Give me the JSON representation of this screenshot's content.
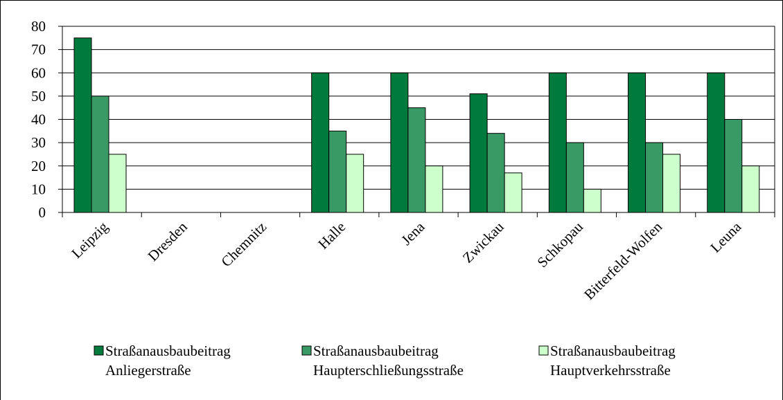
{
  "chart_data": {
    "type": "bar",
    "categories": [
      "Leipzig",
      "Dresden",
      "Chemnitz",
      "Halle",
      "Jena",
      "Zwickau",
      "Schkopau",
      "Bitterfeld-Wolfen",
      "Leuna"
    ],
    "series": [
      {
        "name": "Straßanausbaubeitrag Anliegerstraße",
        "name_lines": [
          "Straßanausbaubeitrag",
          "Anliegerstraße"
        ],
        "color": "#007a3d",
        "values": [
          75,
          null,
          null,
          60,
          60,
          51,
          60,
          60,
          60
        ]
      },
      {
        "name": "Straßanausbaubeitrag Haupterschließungsstraße",
        "name_lines": [
          "Straßanausbaubeitrag",
          "Haupterschließungsstraße"
        ],
        "color": "#3a9a66",
        "values": [
          50,
          null,
          null,
          35,
          45,
          34,
          30,
          30,
          40
        ]
      },
      {
        "name": "Straßanausbaubeitrag Hauptverkehrsstraße",
        "name_lines": [
          "Straßanausbaubeitrag",
          "Hauptverkehrsstraße"
        ],
        "color": "#ccffcc",
        "values": [
          25,
          null,
          null,
          25,
          20,
          17,
          10,
          25,
          20
        ]
      }
    ],
    "ylim": [
      0,
      80
    ],
    "yticks": [
      0,
      10,
      20,
      30,
      40,
      50,
      60,
      70,
      80
    ],
    "grid": true,
    "legend_position": "bottom"
  }
}
